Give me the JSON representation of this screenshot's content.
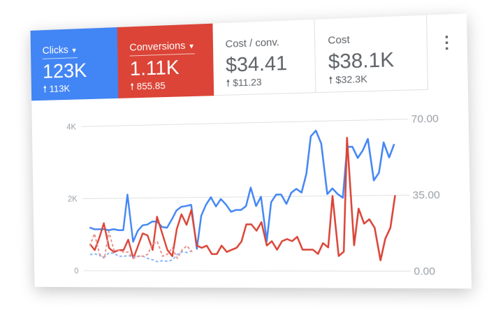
{
  "tiles": [
    {
      "label": "Clicks",
      "value": "123K",
      "delta": "113K",
      "color": "#4285f4",
      "dropdown": true
    },
    {
      "label": "Conversions",
      "value": "1.11K",
      "delta": "855.85",
      "color": "#db4437",
      "dropdown": true
    },
    {
      "label": "Cost / conv.",
      "value": "$34.41",
      "delta": "$11.23"
    },
    {
      "label": "Cost",
      "value": "$38.1K",
      "delta": "$32.3K"
    }
  ],
  "icons": {
    "menu": "more-vert-icon",
    "delta": "arrow-up-icon",
    "dropdown": "caret-down-icon"
  },
  "chart_data": {
    "type": "line",
    "left_axis": {
      "ticks": [
        "0",
        "2K",
        "4K"
      ],
      "range": [
        0,
        4000
      ]
    },
    "right_axis": {
      "ticks": [
        "0.00",
        "35.00",
        "70.00"
      ],
      "range": [
        0,
        70
      ]
    },
    "grid": true,
    "series": [
      {
        "axis": "left",
        "color": "#4285f4",
        "style": "solid",
        "values": [
          1200,
          1150,
          1150,
          1150,
          1120,
          1150,
          1120,
          1120,
          2100,
          800,
          1100,
          1250,
          1270,
          1350,
          1350,
          1200,
          1180,
          1400,
          1650,
          1750,
          1770,
          1800,
          600,
          1500,
          1800,
          2000,
          1750,
          1950,
          1800,
          1600,
          1650,
          1650,
          1750,
          2250,
          1750,
          2000,
          800,
          1850,
          2050,
          2050,
          1800,
          2100,
          2200,
          2100,
          2600,
          3600,
          3750,
          3400,
          2050,
          2200,
          2050,
          1950,
          3300,
          3300,
          3000,
          3200,
          3500,
          2400,
          2600,
          3400,
          3000,
          3350
        ]
      },
      {
        "axis": "right",
        "color": "#db4437",
        "style": "solid",
        "values": [
          13,
          10,
          16,
          23,
          11,
          9,
          10,
          10,
          15,
          6,
          12,
          18,
          17,
          10,
          26,
          18,
          10,
          7,
          20,
          27,
          22,
          29,
          12,
          11,
          12,
          8,
          8,
          12,
          9,
          10,
          11,
          14,
          22,
          22,
          19,
          23,
          12,
          14,
          10,
          14,
          15,
          14,
          16,
          10,
          10,
          10,
          8,
          13,
          11,
          35,
          7,
          9,
          62,
          12,
          29,
          22,
          24,
          20,
          5,
          15,
          20,
          35
        ]
      },
      {
        "axis": "left",
        "color": "#8ab4f8",
        "style": "dashed",
        "values": [
          450,
          470,
          420,
          380,
          500,
          480,
          400,
          400,
          420,
          380,
          400,
          400,
          340,
          300,
          250,
          280,
          260,
          300,
          450,
          520,
          500,
          550
        ]
      },
      {
        "axis": "right",
        "color": "#e8908a",
        "style": "dashed",
        "values": [
          12,
          18,
          8,
          6,
          19,
          10,
          10,
          9,
          9,
          6,
          7,
          7,
          8,
          13,
          14,
          7,
          8,
          11,
          6,
          10,
          12,
          9
        ]
      }
    ]
  }
}
